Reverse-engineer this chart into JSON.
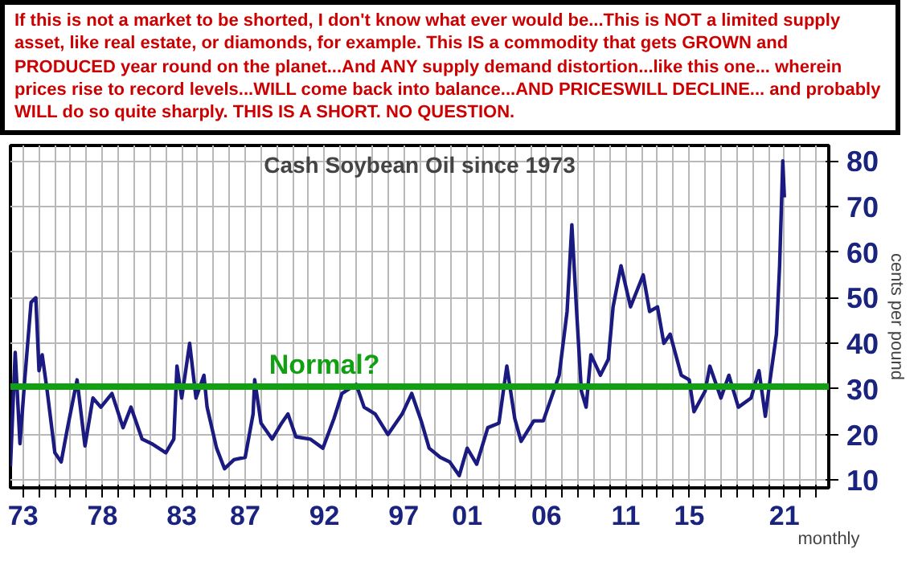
{
  "chart_data": {
    "type": "line",
    "title": "Cash Soybean Oil since 1973",
    "subtitle": "If this is not a market to be shorted, I don't know what ever would be...This is NOT a limited supply asset, like real estate, or diamonds, for example. This IS a commodity that gets GROWN and PRODUCED year round on the planet...And ANY supply demand distortion...like this one... wherein prices rise to record levels...WILL come back into balance...AND PRICESWILL DECLINE... and probably WILL do so quite sharply. THIS IS A SHORT. NO QUESTION.",
    "xlabel": "monthly",
    "ylabel": "cents per pound",
    "x": [
      1972.2,
      1972.5,
      1972.8,
      1973.1,
      1973.5,
      1973.8,
      1974.0,
      1974.2,
      1974.5,
      1975.0,
      1975.4,
      1975.8,
      1976.4,
      1976.9,
      1977.4,
      1977.9,
      1978.6,
      1979.3,
      1979.8,
      1980.5,
      1981.1,
      1982.0,
      1982.5,
      1982.7,
      1983.0,
      1983.5,
      1983.9,
      1984.4,
      1984.6,
      1985.2,
      1985.7,
      1986.3,
      1987.0,
      1987.5,
      1987.6,
      1988.0,
      1988.7,
      1989.3,
      1989.7,
      1990.2,
      1991.1,
      1991.9,
      1992.6,
      1993.1,
      1994.0,
      1994.5,
      1995.2,
      1996.0,
      1996.9,
      1997.5,
      1998.1,
      1998.6,
      1999.3,
      1999.9,
      2000.5,
      2001.0,
      2001.6,
      2002.3,
      2003.0,
      2003.5,
      2004.0,
      2004.4,
      2005.2,
      2005.8,
      2006.8,
      2007.3,
      2007.6,
      2007.9,
      2008.2,
      2008.5,
      2008.8,
      2009.4,
      2009.9,
      2010.2,
      2010.7,
      2011.3,
      2012.1,
      2012.5,
      2013.0,
      2013.4,
      2013.8,
      2014.5,
      2015.0,
      2015.3,
      2016.0,
      2016.3,
      2017.0,
      2017.5,
      2018.1,
      2018.9,
      2019.4,
      2019.8,
      2020.1,
      2020.5,
      2020.7,
      2020.9,
      2021.0
    ],
    "series": [
      {
        "color": "#1a1a80",
        "values": [
          13,
          38,
          18,
          32,
          49,
          50,
          34,
          37.5,
          30,
          16,
          14,
          21.5,
          32,
          17.5,
          28,
          26,
          29,
          21.5,
          26,
          19,
          18,
          16,
          19,
          35,
          28,
          40,
          28,
          33,
          26,
          17,
          12.5,
          14.5,
          15,
          24.5,
          32,
          22.5,
          19,
          22.5,
          24.5,
          19.5,
          19,
          17,
          23.5,
          29,
          31,
          26,
          24.5,
          20,
          24.5,
          29,
          23,
          17,
          15,
          14,
          11,
          17,
          13.5,
          21.5,
          22.5,
          35,
          23.5,
          18.5,
          23,
          23,
          33,
          47,
          66,
          47,
          29.5,
          26,
          37.5,
          33,
          36.5,
          48,
          57,
          48,
          55,
          47,
          48,
          40,
          42,
          33,
          32,
          25,
          29.5,
          35,
          28,
          33,
          26,
          28,
          34,
          24,
          32,
          42,
          57,
          80,
          72
        ]
      }
    ],
    "xlim": [
      1972.2,
      2023.8
    ],
    "ylim": [
      8.3,
      83.4
    ],
    "yticks": [
      10,
      20,
      30,
      40,
      50,
      60,
      70,
      80
    ],
    "xticks": [
      {
        "value": 1973,
        "label": "73"
      },
      {
        "value": 1974,
        "label": null
      },
      {
        "value": 1975,
        "label": null
      },
      {
        "value": 1976,
        "label": null
      },
      {
        "value": 1977,
        "label": null
      },
      {
        "value": 1978,
        "label": "78"
      },
      {
        "value": 1979,
        "label": null
      },
      {
        "value": 1980,
        "label": null
      },
      {
        "value": 1981,
        "label": null
      },
      {
        "value": 1982,
        "label": null
      },
      {
        "value": 1983,
        "label": "83"
      },
      {
        "value": 1984,
        "label": null
      },
      {
        "value": 1985,
        "label": null
      },
      {
        "value": 1986,
        "label": null
      },
      {
        "value": 1987,
        "label": "87"
      },
      {
        "value": 1988,
        "label": null
      },
      {
        "value": 1989,
        "label": null
      },
      {
        "value": 1990,
        "label": null
      },
      {
        "value": 1991,
        "label": null
      },
      {
        "value": 1992,
        "label": "92"
      },
      {
        "value": 1993,
        "label": null
      },
      {
        "value": 1994,
        "label": null
      },
      {
        "value": 1995,
        "label": null
      },
      {
        "value": 1996,
        "label": null
      },
      {
        "value": 1997,
        "label": "97"
      },
      {
        "value": 1998,
        "label": null
      },
      {
        "value": 1999,
        "label": null
      },
      {
        "value": 2000,
        "label": null
      },
      {
        "value": 2001,
        "label": "01"
      },
      {
        "value": 2002,
        "label": null
      },
      {
        "value": 2003,
        "label": null
      },
      {
        "value": 2004,
        "label": null
      },
      {
        "value": 2005,
        "label": null
      },
      {
        "value": 2006,
        "label": "06"
      },
      {
        "value": 2007,
        "label": null
      },
      {
        "value": 2008,
        "label": null
      },
      {
        "value": 2009,
        "label": null
      },
      {
        "value": 2010,
        "label": null
      },
      {
        "value": 2011,
        "label": "11"
      },
      {
        "value": 2012,
        "label": null
      },
      {
        "value": 2013,
        "label": null
      },
      {
        "value": 2014,
        "label": null
      },
      {
        "value": 2015,
        "label": "15"
      },
      {
        "value": 2016,
        "label": null
      },
      {
        "value": 2017,
        "label": null
      },
      {
        "value": 2018,
        "label": null
      },
      {
        "value": 2019,
        "label": null
      },
      {
        "value": 2020,
        "label": null
      },
      {
        "value": 2021,
        "label": "21"
      },
      {
        "value": 2022,
        "label": null
      },
      {
        "value": 2023,
        "label": null
      }
    ],
    "ref_lines": [
      {
        "axis": "y",
        "value": 30.5,
        "label": "Normal?",
        "color": "#11a011"
      }
    ],
    "grid": true
  }
}
